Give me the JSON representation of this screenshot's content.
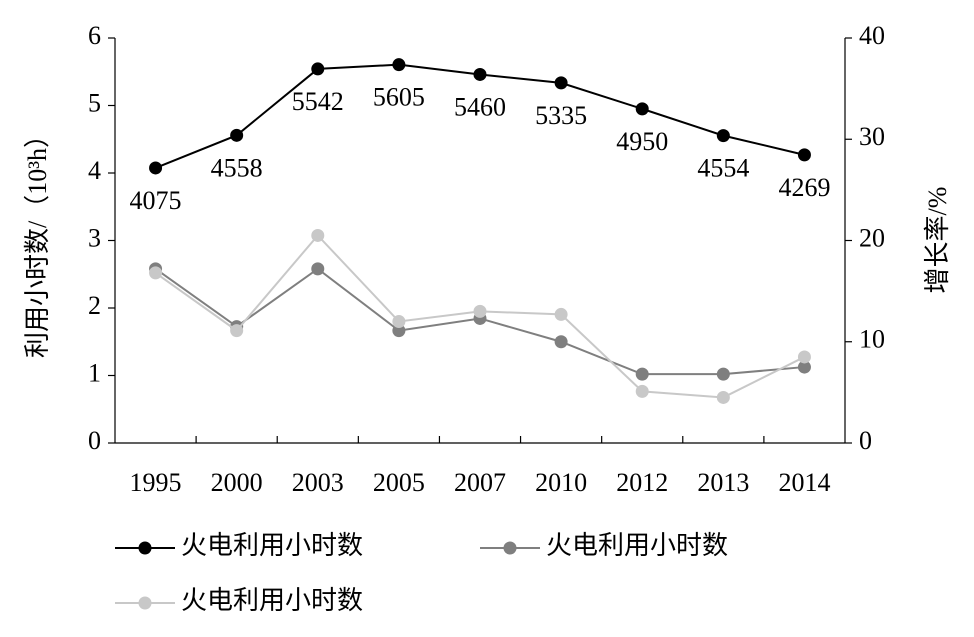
{
  "chart_data": {
    "type": "line",
    "y_label": "利用小时数/（10³h）",
    "y2_label": "增长率/%",
    "categories": [
      "1995",
      "2000",
      "2003",
      "2005",
      "2007",
      "2010",
      "2012",
      "2013",
      "2014"
    ],
    "series": [
      {
        "name": "火电利用小时数",
        "color": "#000000",
        "axis": "y",
        "values": [
          4.075,
          4.558,
          5.542,
          5.605,
          5.46,
          5.335,
          4.95,
          4.554,
          4.269
        ],
        "value_labels": [
          "4075",
          "4558",
          "5542",
          "5605",
          "5460",
          "5335",
          "4950",
          "4554",
          "4269"
        ]
      },
      {
        "name": "火电利用小时数",
        "color": "#7f7f7f",
        "axis": "y2",
        "values": [
          17.2,
          11.5,
          17.2,
          11.1,
          12.3,
          10,
          6.8,
          6.8,
          7.5
        ]
      },
      {
        "name": "火电利用小时数",
        "color": "#c8c8c8",
        "axis": "y2",
        "values": [
          16.8,
          11.1,
          20.5,
          12,
          13,
          12.7,
          5.1,
          4.5,
          8.5
        ]
      }
    ],
    "ylim": [
      0,
      6
    ],
    "yticks": [
      0,
      1,
      2,
      3,
      4,
      5,
      6
    ],
    "y2lim": [
      0,
      40
    ],
    "y2ticks": [
      0,
      10,
      20,
      30,
      40
    ],
    "grid": false
  }
}
